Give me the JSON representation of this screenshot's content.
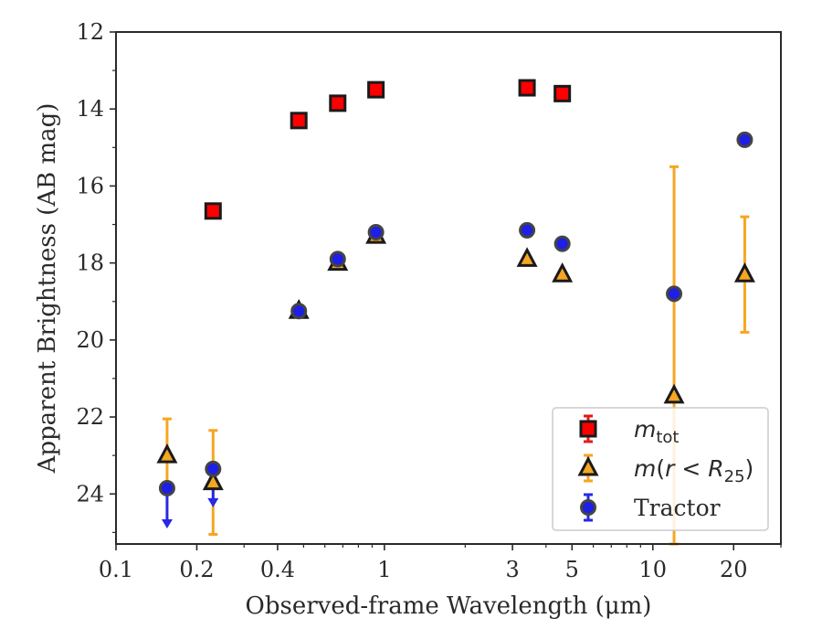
{
  "chart_data": {
    "type": "scatter",
    "xlabel": "Observed-frame Wavelength (μm)",
    "ylabel": "Apparent Brightness (AB mag)",
    "xscale": "log",
    "xlim": [
      0.1,
      30
    ],
    "ylim": [
      25.3,
      12
    ],
    "y_inverted": true,
    "grid": false,
    "legend_position": "lower-right",
    "x_ticks": [
      0.1,
      0.2,
      0.4,
      1,
      3,
      5,
      10,
      20
    ],
    "x_tick_labels": [
      "0.1",
      "0.2",
      "0.4",
      "1",
      "3",
      "5",
      "10",
      "20"
    ],
    "y_ticks": [
      12,
      14,
      16,
      18,
      20,
      22,
      24
    ],
    "y_tick_labels": [
      "12",
      "14",
      "16",
      "18",
      "20",
      "22",
      "24"
    ],
    "series": [
      {
        "name": "m_tot",
        "legend": {
          "italic": "m",
          "subscript": "tot"
        },
        "marker": "square",
        "color": "#ff0000",
        "edge_color": "#1a1a1a",
        "errorbar_color": "#e41a1a",
        "points": [
          {
            "x": 0.23,
            "y": 16.65
          },
          {
            "x": 0.48,
            "y": 14.3
          },
          {
            "x": 0.67,
            "y": 13.85
          },
          {
            "x": 0.93,
            "y": 13.5
          },
          {
            "x": 3.4,
            "y": 13.45
          },
          {
            "x": 4.6,
            "y": 13.6
          }
        ]
      },
      {
        "name": "m(r < R25)",
        "legend": {
          "italic": "m",
          "paren_open": "(",
          "r": "r",
          "lt": " < ",
          "R": "R",
          "subscript": "25",
          "paren_close": ")"
        },
        "marker": "triangle",
        "color": "#f5a623",
        "edge_color": "#1a1a1a",
        "errorbar_color": "#f5a623",
        "points": [
          {
            "x": 0.155,
            "y": 23.0,
            "yerr": [
              22.05,
              23.95
            ]
          },
          {
            "x": 0.23,
            "y": 23.7,
            "yerr": [
              22.35,
              25.05
            ]
          },
          {
            "x": 0.48,
            "y": 19.25
          },
          {
            "x": 0.67,
            "y": 18.0
          },
          {
            "x": 0.93,
            "y": 17.3
          },
          {
            "x": 3.4,
            "y": 17.9
          },
          {
            "x": 4.6,
            "y": 18.3
          },
          {
            "x": 12.0,
            "y": 21.45,
            "yerr": [
              15.5,
              25.3
            ]
          },
          {
            "x": 22.0,
            "y": 18.3,
            "yerr": [
              16.8,
              19.8
            ]
          }
        ]
      },
      {
        "name": "Tractor",
        "marker": "circle",
        "color": "#1e1ee6",
        "edge_color": "#444444",
        "errorbar_color": "#2828e6",
        "points": [
          {
            "x": 0.155,
            "y": 23.85,
            "upper_limit": true,
            "arrow_to": 24.85
          },
          {
            "x": 0.23,
            "y": 23.35,
            "upper_limit": true,
            "arrow_to": 24.3
          },
          {
            "x": 0.48,
            "y": 19.25
          },
          {
            "x": 0.67,
            "y": 17.9
          },
          {
            "x": 0.93,
            "y": 17.2
          },
          {
            "x": 3.4,
            "y": 17.15
          },
          {
            "x": 4.6,
            "y": 17.5
          },
          {
            "x": 12.0,
            "y": 18.8
          },
          {
            "x": 22.0,
            "y": 14.8
          }
        ]
      }
    ]
  }
}
